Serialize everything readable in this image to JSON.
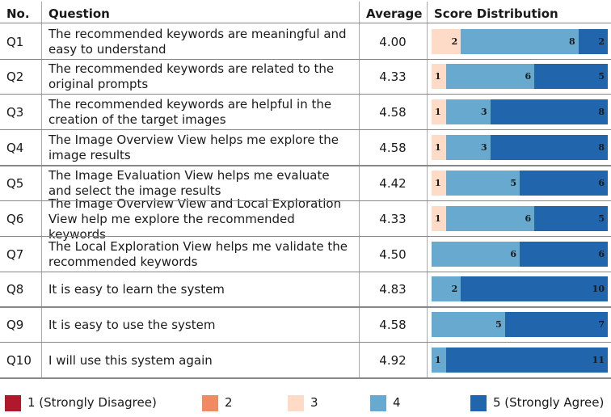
{
  "table": {
    "headers": {
      "no": "No.",
      "question": "Question",
      "average": "Average",
      "distribution": "Score Distribution"
    },
    "rows": [
      {
        "no": "Q1",
        "question": "The recommended keywords are meaningful and easy to understand",
        "average": "4.00"
      },
      {
        "no": "Q2",
        "question": "The recommended keywords are related to the original prompts",
        "average": "4.33"
      },
      {
        "no": "Q3",
        "question": "The recommended keywords are helpful in the creation of the target images",
        "average": "4.58"
      },
      {
        "no": "Q4",
        "question": "The Image Overview View helps me explore the image results",
        "average": "4.58"
      },
      {
        "no": "Q5",
        "question": "The Image Evaluation View helps me evaluate and select the image results",
        "average": "4.42"
      },
      {
        "no": "Q6",
        "question": "The Image Overview View and Local Exploration View help me explore the recommended keywords",
        "average": "4.33"
      },
      {
        "no": "Q7",
        "question": "The Local Exploration View helps me validate the recommended keywords",
        "average": "4.50"
      },
      {
        "no": "Q8",
        "question": "It is easy to learn the system",
        "average": "4.83"
      },
      {
        "no": "Q9",
        "question": "It is easy to use the system",
        "average": "4.58"
      },
      {
        "no": "Q10",
        "question": "I will use this system again",
        "average": "4.92"
      }
    ]
  },
  "chart_data": {
    "type": "bar",
    "orientation": "horizontal",
    "stacked": true,
    "categories": [
      "Q1",
      "Q2",
      "Q3",
      "Q4",
      "Q5",
      "Q6",
      "Q7",
      "Q8",
      "Q9",
      "Q10"
    ],
    "series": [
      {
        "name": "1 (Strongly Disagree)",
        "color": "#b2182b",
        "values": [
          0,
          0,
          0,
          0,
          0,
          0,
          0,
          0,
          0,
          0
        ]
      },
      {
        "name": "2",
        "color": "#ef8a62",
        "values": [
          0,
          0,
          0,
          0,
          0,
          0,
          0,
          0,
          0,
          0
        ]
      },
      {
        "name": "3",
        "color": "#fddbc7",
        "values": [
          2,
          1,
          1,
          1,
          1,
          1,
          0,
          0,
          0,
          0
        ]
      },
      {
        "name": "4",
        "color": "#67a9cf",
        "values": [
          8,
          6,
          3,
          3,
          5,
          6,
          6,
          2,
          5,
          1
        ]
      },
      {
        "name": "5 (Strongly Agree)",
        "color": "#2166ac",
        "values": [
          2,
          5,
          8,
          8,
          6,
          5,
          6,
          10,
          7,
          11
        ]
      }
    ],
    "total": 12,
    "legend": "bottom"
  }
}
